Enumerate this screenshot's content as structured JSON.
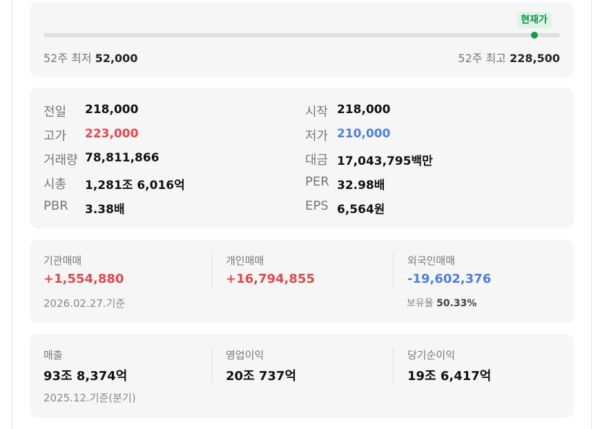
{
  "range": {
    "badge": "현재가",
    "current_position_pct": 95,
    "low_label": "52주 최저",
    "low_value": "52,000",
    "high_label": "52주 최고",
    "high_value": "228,500"
  },
  "stats": {
    "prev_close": {
      "label": "전일",
      "value": "218,000"
    },
    "open": {
      "label": "시작",
      "value": "218,000"
    },
    "high": {
      "label": "고가",
      "value": "223,000"
    },
    "low": {
      "label": "저가",
      "value": "210,000"
    },
    "volume": {
      "label": "거래량",
      "value": "78,811,866"
    },
    "amount": {
      "label": "대금",
      "value": "17,043,795백만"
    },
    "market_cap": {
      "label": "시총",
      "value": "1,281조 6,016억"
    },
    "per": {
      "label": "PER",
      "value": "32.98배"
    },
    "pbr": {
      "label": "PBR",
      "value": "3.38배"
    },
    "eps": {
      "label": "EPS",
      "value": "6,564원"
    }
  },
  "trading": {
    "institution": {
      "label": "기관매매",
      "value": "+1,554,880"
    },
    "individual": {
      "label": "개인매매",
      "value": "+16,794,855"
    },
    "foreign": {
      "label": "외국인매매",
      "value": "-19,602,376"
    },
    "date_note": "2026.02.27.기준",
    "holding_label": "보유율",
    "holding_value": "50.33%"
  },
  "financials": {
    "revenue": {
      "label": "매출",
      "value": "93조 8,374억"
    },
    "operating_income": {
      "label": "영업이익",
      "value": "20조 737억"
    },
    "net_income": {
      "label": "당기순이익",
      "value": "19조 6,417억"
    },
    "date_note": "2025.12.기준(분기)"
  },
  "colors": {
    "up": "#e5484d",
    "down": "#4e7fe0",
    "accent": "#0ea04f"
  }
}
